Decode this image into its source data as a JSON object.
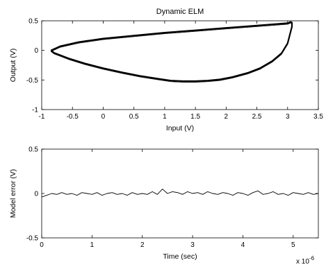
{
  "chart_data": [
    {
      "type": "line",
      "title": "Dynamic ELM",
      "xlabel": "Input (V)",
      "ylabel": "Output (V)",
      "xlim": [
        -1,
        3.5
      ],
      "ylim": [
        -1,
        0.5
      ],
      "xticks": [
        -1,
        -0.5,
        0,
        0.5,
        1,
        1.5,
        2,
        2.5,
        3,
        3.5
      ],
      "xtick_labels": [
        "-1",
        "-0.5",
        "0",
        "0.5",
        "1",
        "1.5",
        "2",
        "2.5",
        "3",
        "3.5"
      ],
      "yticks": [
        -1,
        -0.5,
        0,
        0.5
      ],
      "ytick_labels": [
        "-1",
        "-0.5",
        "0",
        "0.5"
      ],
      "grid": false,
      "series": [
        {
          "color": "#000000",
          "x": [
            -0.85,
            -0.7,
            -0.4,
            0.0,
            0.5,
            1.0,
            1.5,
            2.0,
            2.5,
            3.0,
            3.05,
            3.07,
            3.07,
            3.04,
            3.0,
            2.9,
            2.75,
            2.55,
            2.35,
            2.1,
            1.9,
            1.7,
            1.5,
            1.3,
            1.1,
            0.9,
            0.6,
            0.3,
            0.0,
            -0.3,
            -0.55,
            -0.7,
            -0.8,
            -0.85
          ],
          "y": [
            0.0,
            0.07,
            0.14,
            0.2,
            0.25,
            0.3,
            0.34,
            0.38,
            0.42,
            0.46,
            0.48,
            0.47,
            0.4,
            0.28,
            0.12,
            -0.05,
            -0.18,
            -0.3,
            -0.38,
            -0.45,
            -0.49,
            -0.51,
            -0.52,
            -0.52,
            -0.51,
            -0.48,
            -0.43,
            -0.37,
            -0.3,
            -0.22,
            -0.14,
            -0.08,
            -0.04,
            0.0
          ]
        }
      ]
    },
    {
      "type": "line",
      "title": "",
      "xlabel": "Time (sec)",
      "ylabel": "Model error (V)",
      "x_multiplier": "x 10",
      "x_multiplier_exponent": "-6",
      "xlim": [
        0,
        5.5
      ],
      "ylim": [
        -0.5,
        0.5
      ],
      "xticks": [
        0,
        1,
        2,
        3,
        4,
        5
      ],
      "xtick_labels": [
        "0",
        "1",
        "2",
        "3",
        "4",
        "5"
      ],
      "yticks": [
        -0.5,
        0,
        0.5
      ],
      "ytick_labels": [
        "-0.5",
        "0",
        "0.5"
      ],
      "grid": false,
      "series": [
        {
          "color": "#000000",
          "x": [
            0,
            0.1,
            0.2,
            0.3,
            0.4,
            0.5,
            0.6,
            0.7,
            0.8,
            0.9,
            1.0,
            1.1,
            1.2,
            1.3,
            1.4,
            1.5,
            1.6,
            1.7,
            1.8,
            1.9,
            2.0,
            2.1,
            2.2,
            2.3,
            2.4,
            2.5,
            2.6,
            2.7,
            2.8,
            2.9,
            3.0,
            3.1,
            3.2,
            3.3,
            3.4,
            3.5,
            3.6,
            3.7,
            3.8,
            3.9,
            4.0,
            4.1,
            4.2,
            4.3,
            4.4,
            4.5,
            4.6,
            4.7,
            4.8,
            4.9,
            5.0,
            5.1,
            5.2,
            5.3,
            5.4,
            5.5
          ],
          "y": [
            -0.04,
            -0.02,
            0.0,
            -0.01,
            0.01,
            -0.01,
            0.0,
            -0.02,
            0.01,
            0.0,
            -0.01,
            0.01,
            -0.02,
            0.0,
            0.01,
            -0.01,
            0.0,
            -0.02,
            0.01,
            -0.01,
            0.0,
            -0.01,
            0.02,
            -0.01,
            0.05,
            0.0,
            0.02,
            0.01,
            -0.01,
            0.02,
            0.0,
            0.01,
            -0.01,
            0.02,
            0.0,
            -0.01,
            0.01,
            0.0,
            -0.02,
            0.01,
            0.0,
            -0.02,
            0.01,
            0.03,
            -0.01,
            0.0,
            0.02,
            -0.01,
            0.0,
            -0.02,
            0.01,
            0.0,
            -0.01,
            0.01,
            -0.01,
            0.0
          ]
        }
      ]
    }
  ]
}
